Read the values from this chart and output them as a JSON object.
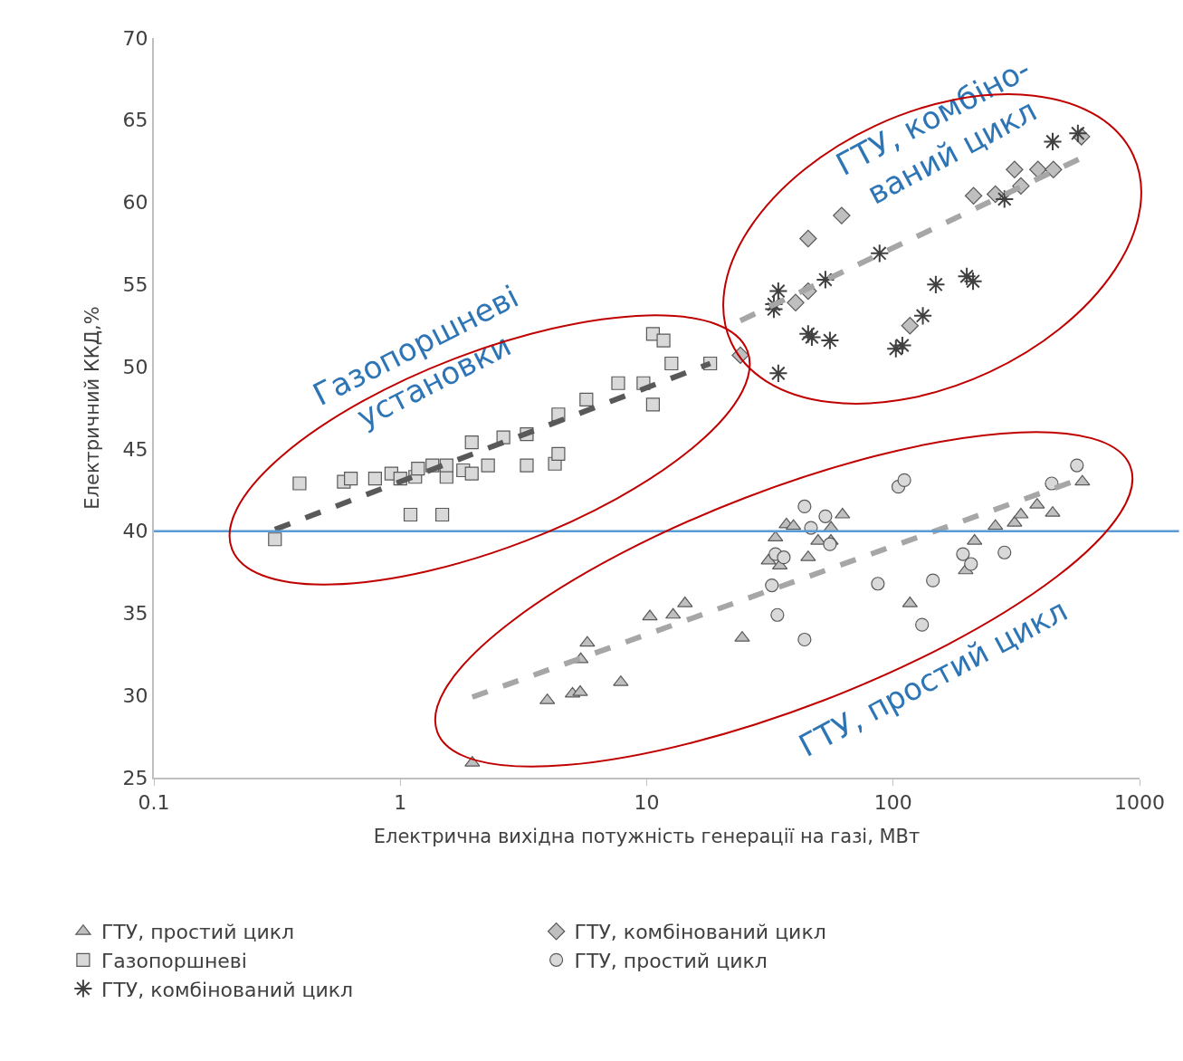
{
  "chart_data": {
    "type": "scatter",
    "xlabel": "Електрична вихідна потужність генерації на газі, МВт",
    "ylabel": "Електричний ККД,%",
    "log": "x",
    "xlim": [
      0.1,
      1000
    ],
    "xticks": [
      0.1,
      1,
      10,
      100,
      1000
    ],
    "ylim": [
      25,
      70
    ],
    "yticks": [
      25,
      30,
      35,
      40,
      45,
      50,
      55,
      60,
      65,
      70
    ],
    "grid": false,
    "legend": "bottom",
    "series": [
      {
        "name": "ГТУ, простий цикл",
        "marker": "triangle",
        "color": "#bfbfbf",
        "x": [
          1.96,
          3.95,
          5.0,
          5.37,
          5.4,
          5.74,
          7.85,
          10.3,
          12.8,
          14.3,
          24.4,
          31.2,
          33.3,
          34.7,
          36.9,
          39.4,
          45.2,
          49.6,
          55.9,
          56,
          62.3,
          117,
          197,
          214,
          260,
          311,
          330,
          384,
          444,
          586
        ],
        "values": [
          25.9,
          29.7,
          30.1,
          30.2,
          32.2,
          33.2,
          30.8,
          34.8,
          34.9,
          35.6,
          33.5,
          38.2,
          39.6,
          37.9,
          40.4,
          40.3,
          38.4,
          39.4,
          39.4,
          40.2,
          41.0,
          35.6,
          37.6,
          39.4,
          40.3,
          40.5,
          41.0,
          41.6,
          41.1,
          43.0
        ]
      },
      {
        "name": "ГТУ, комбінований цикл",
        "marker": "diamond",
        "color": "#bfbfbf",
        "x": [
          24.0,
          40.2,
          45.2,
          45.2,
          61.8,
          117,
          212,
          260,
          311,
          330,
          387,
          447,
          581
        ],
        "values": [
          50.7,
          53.9,
          57.8,
          54.6,
          59.2,
          52.5,
          60.4,
          60.5,
          62.0,
          61.0,
          62.0,
          62.0,
          64.0
        ]
      },
      {
        "name": "Газопоршневі",
        "marker": "square",
        "color": "#d9d9d9",
        "x": [
          0.31,
          0.39,
          0.59,
          0.63,
          0.79,
          0.92,
          1.0,
          1.1,
          1.15,
          1.18,
          1.35,
          1.48,
          1.54,
          1.54,
          1.8,
          1.95,
          1.95,
          2.27,
          2.62,
          3.26,
          3.26,
          4.24,
          4.38,
          4.38,
          5.69,
          7.66,
          9.7,
          10.6,
          10.6,
          11.7,
          12.6,
          18.1
        ],
        "values": [
          39.5,
          42.9,
          43.0,
          43.2,
          43.2,
          43.5,
          43.2,
          41.0,
          43.3,
          43.8,
          44.0,
          41.0,
          43.3,
          44.0,
          43.7,
          43.5,
          45.4,
          44.0,
          45.7,
          45.9,
          44.0,
          44.1,
          44.7,
          47.1,
          48.0,
          49.0,
          49.0,
          47.7,
          52.0,
          51.6,
          50.2,
          50.2
        ]
      },
      {
        "name": "ГТУ, простий цикл",
        "marker": "circle",
        "color": "#d9d9d9",
        "x": [
          32.2,
          33.3,
          36.0,
          33.9,
          43.7,
          43.7,
          46.4,
          53.1,
          55.4,
          86.7,
          105,
          111,
          131,
          145,
          192,
          207,
          283,
          440,
          557
        ],
        "values": [
          36.7,
          38.6,
          38.4,
          34.9,
          33.4,
          41.5,
          40.2,
          40.9,
          39.2,
          36.8,
          42.7,
          43.1,
          34.3,
          37.0,
          38.6,
          38.0,
          38.7,
          42.9,
          44.0
        ]
      },
      {
        "name": "ГТУ, комбінований цикл",
        "marker": "cross",
        "color": "#404040",
        "x": [
          34.2,
          32.8,
          34.2,
          32.8,
          45.2,
          46.8,
          53.1,
          55.4,
          88.1,
          102.6,
          109,
          132,
          149,
          199,
          211,
          283,
          444,
          562
        ],
        "values": [
          54.6,
          53.8,
          49.6,
          53.5,
          52.0,
          51.8,
          55.3,
          51.6,
          56.9,
          51.1,
          51.3,
          53.1,
          55.0,
          55.5,
          55.2,
          60.2,
          63.7,
          64.2
        ]
      },
      {
        "type": "line",
        "marker": "none",
        "line_style": "dashed",
        "color": "#595959",
        "x": [
          0.31,
          18.1
        ],
        "values": [
          40.1,
          50.2
        ]
      },
      {
        "type": "line",
        "marker": "none",
        "line_style": "dashed",
        "color": "#a6a6a6",
        "x": [
          24,
          600
        ],
        "values": [
          52.8,
          62.8
        ]
      },
      {
        "type": "line",
        "marker": "none",
        "line_style": "dashed",
        "color": "#a6a6a6",
        "x": [
          1.96,
          557
        ],
        "values": [
          29.9,
          43.1
        ]
      }
    ],
    "ref_lines": [
      {
        "axis": "y",
        "value": 40,
        "color": "#5b9bd5",
        "line_style": "solid"
      }
    ],
    "annotations": [
      "Газопоршневі\nустановки",
      "ГТУ, комбіно-\nваний цикл",
      "ГТУ, простий цикл"
    ]
  }
}
